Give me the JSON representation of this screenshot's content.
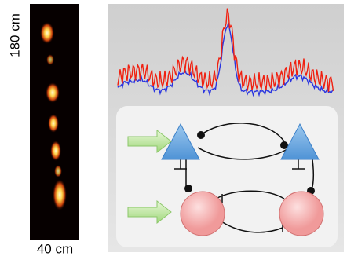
{
  "labels": {
    "height": "180 cm",
    "width": "40 cm"
  }
}
